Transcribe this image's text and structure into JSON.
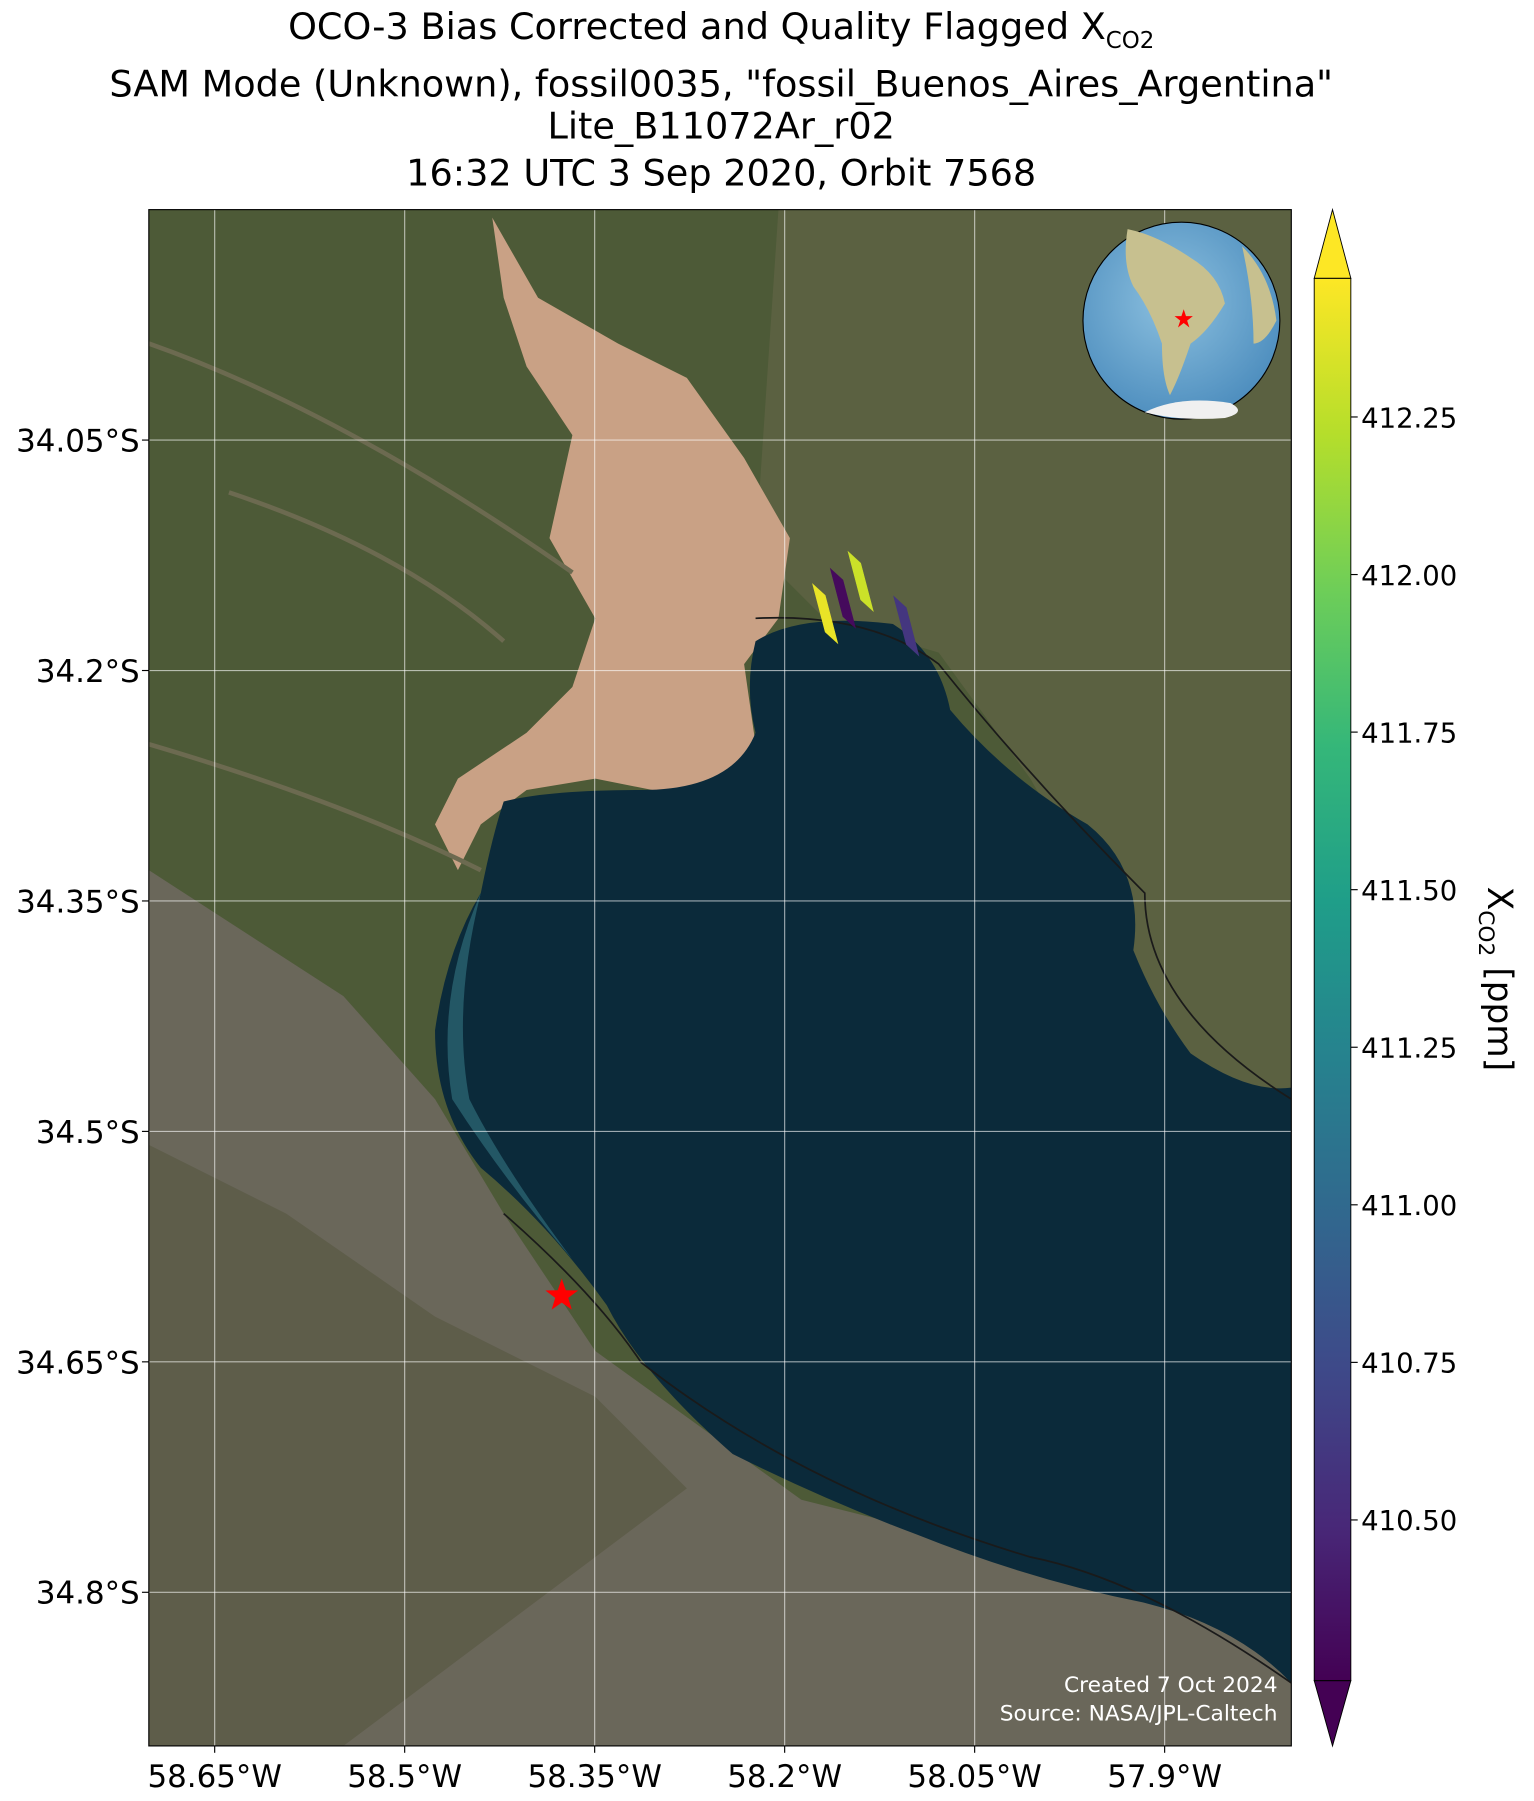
{
  "chart_data": {
    "type": "map",
    "title": {
      "text": "OCO-3 Bias Corrected and Quality Flagged X",
      "subscript": "CO2"
    },
    "subtitle": [
      "SAM Mode (Unknown), fossil0035, \"fossil_Buenos_Aires_Argentina\"",
      "Lite_B11072Ar_r02",
      "16:32 UTC 3 Sep 2020, Orbit 7568"
    ],
    "xlim": [
      -58.702,
      -57.8
    ],
    "ylim": [
      -34.9,
      -33.9
    ],
    "xticks": [
      {
        "value": -58.65,
        "label": "58.65°W"
      },
      {
        "value": -58.5,
        "label": "58.5°W"
      },
      {
        "value": -58.35,
        "label": "58.35°W"
      },
      {
        "value": -58.2,
        "label": "58.2°W"
      },
      {
        "value": -58.05,
        "label": "58.05°W"
      },
      {
        "value": -57.9,
        "label": "57.9°W"
      }
    ],
    "yticks": [
      {
        "value": -34.05,
        "label": "34.05°S"
      },
      {
        "value": -34.2,
        "label": "34.2°S"
      },
      {
        "value": -34.35,
        "label": "34.35°S"
      },
      {
        "value": -34.5,
        "label": "34.5°S"
      },
      {
        "value": -34.65,
        "label": "34.65°S"
      },
      {
        "value": -34.8,
        "label": "34.8°S"
      }
    ],
    "grid": true,
    "soundings": {
      "lon": [
        -58.168,
        -58.154,
        -58.14,
        -58.104
      ],
      "lat": [
        -34.163,
        -34.153,
        -34.142,
        -34.171
      ],
      "values": [
        412.4,
        410.3,
        412.3,
        410.6
      ]
    },
    "site": {
      "lon": -58.376,
      "lat": -34.607,
      "color": "#ff0000"
    },
    "colorbar": {
      "label": {
        "text": "X",
        "subscript": "CO2",
        "suffix": " [ppm]"
      },
      "colormap": "viridis",
      "clim": [
        410.245,
        412.47
      ],
      "ticks": [
        {
          "value": 410.5,
          "label": "410.50"
        },
        {
          "value": 410.75,
          "label": "410.75"
        },
        {
          "value": 411.0,
          "label": "411.00"
        },
        {
          "value": 411.25,
          "label": "411.25"
        },
        {
          "value": 411.5,
          "label": "411.50"
        },
        {
          "value": 411.75,
          "label": "411.75"
        },
        {
          "value": 412.0,
          "label": "412.00"
        },
        {
          "value": 412.25,
          "label": "412.25"
        }
      ],
      "extend": "both"
    },
    "annotations": [
      "Created 7 Oct 2024",
      "Source: NASA/JPL-Caltech"
    ]
  }
}
